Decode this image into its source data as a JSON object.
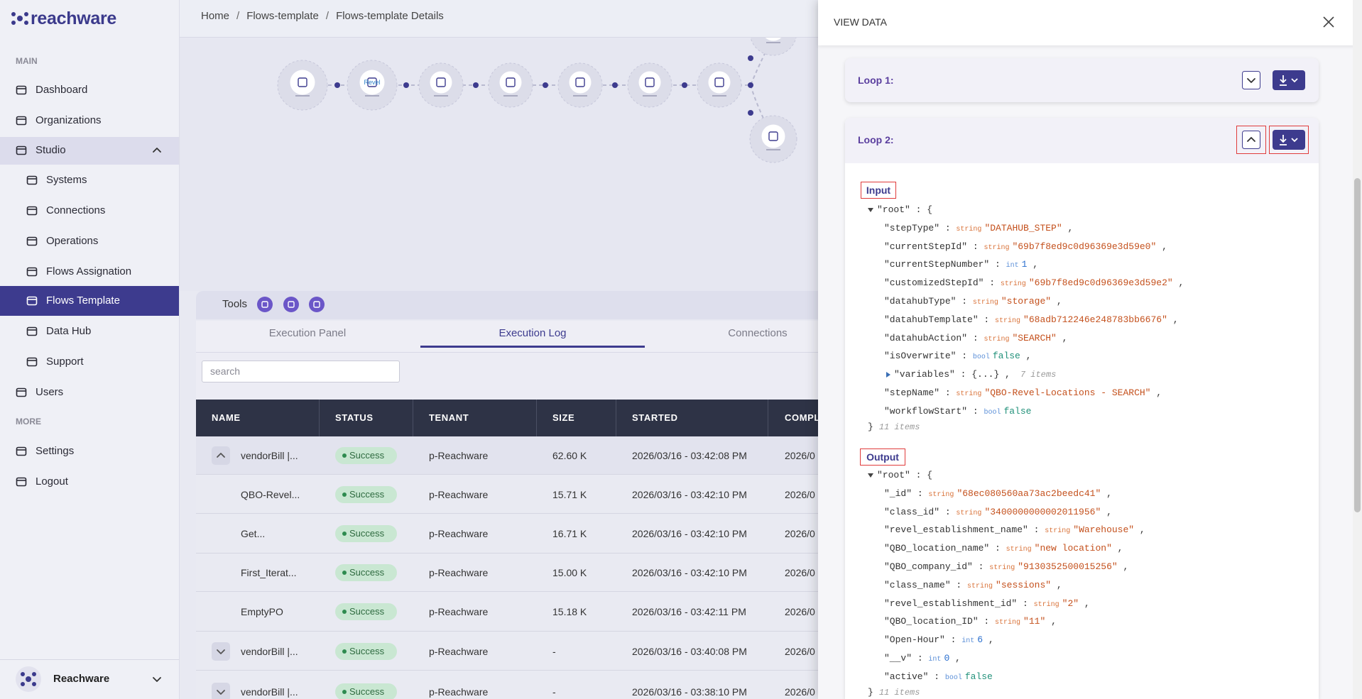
{
  "sidebar": {
    "logo": "reachware",
    "main_heading": "MAIN",
    "items": [
      {
        "label": "Dashboard"
      },
      {
        "label": "Organizations"
      },
      {
        "label": "Studio",
        "expanded": true
      },
      {
        "label": "Systems",
        "sub": true
      },
      {
        "label": "Connections",
        "sub": true
      },
      {
        "label": "Operations",
        "sub": true
      },
      {
        "label": "Flows Assignation",
        "sub": true
      },
      {
        "label": "Flows Template",
        "sub": true,
        "active": true
      },
      {
        "label": "Data Hub",
        "sub": true
      },
      {
        "label": "Support",
        "sub": true
      },
      {
        "label": "Users"
      }
    ],
    "more_heading": "MORE",
    "more_items": [
      {
        "label": "Settings"
      },
      {
        "label": "Logout"
      }
    ],
    "footer": "Reachware"
  },
  "breadcrumb": [
    "Home",
    "Flows-template",
    "Flows-template Details"
  ],
  "flow": {
    "logo_text": "Revel"
  },
  "tools": {
    "label": "Tools"
  },
  "tabs": {
    "items": [
      "Execution Panel",
      "Execution Log",
      "Connections"
    ],
    "active": 1
  },
  "search": {
    "placeholder": "search"
  },
  "table": {
    "columns": [
      "NAME",
      "STATUS",
      "TENANT",
      "SIZE",
      "STARTED",
      "COMPL"
    ],
    "rows": [
      {
        "toggle": "collapse",
        "cells": [
          "vendorBill |...",
          "Success",
          "p-Reachware",
          "62.60 K",
          "2026/03/16 - 03:42:08 PM",
          "2026/0"
        ]
      },
      {
        "cells": [
          "QBO-Revel...",
          "Success",
          "p-Reachware",
          "15.71 K",
          "2026/03/16 - 03:42:10 PM",
          "2026/0"
        ]
      },
      {
        "cells": [
          "Get...",
          "Success",
          "p-Reachware",
          "16.71 K",
          "2026/03/16 - 03:42:10 PM",
          "2026/0"
        ]
      },
      {
        "cells": [
          "First_Iterat...",
          "Success",
          "p-Reachware",
          "15.00 K",
          "2026/03/16 - 03:42:10 PM",
          "2026/0"
        ]
      },
      {
        "cells": [
          "EmptyPO",
          "Success",
          "p-Reachware",
          "15.18 K",
          "2026/03/16 - 03:42:11 PM",
          "2026/0"
        ]
      },
      {
        "toggle": "expand",
        "cells": [
          "vendorBill |...",
          "Success",
          "p-Reachware",
          "-",
          "2026/03/16 - 03:40:08 PM",
          "2026/0"
        ]
      },
      {
        "toggle": "expand",
        "cells": [
          "vendorBill |...",
          "Success",
          "p-Reachware",
          "-",
          "2026/03/16 - 03:38:10 PM",
          "2026/0"
        ]
      }
    ]
  },
  "panel": {
    "title": "VIEW DATA",
    "loops": [
      {
        "label": "Loop 1:",
        "expanded": false
      },
      {
        "label": "Loop 2:",
        "expanded": true
      }
    ],
    "input": {
      "label": "Input",
      "root": "\"root\"",
      "count": "11 items",
      "lines": [
        {
          "key": "\"stepType\"",
          "type": "string",
          "value": "\"DATAHUB_STEP\""
        },
        {
          "key": "\"currentStepId\"",
          "type": "string",
          "value": "\"69b7f8ed9c0d96369e3d59e0\""
        },
        {
          "key": "\"currentStepNumber\"",
          "type": "int",
          "value": "1"
        },
        {
          "key": "\"customizedStepId\"",
          "type": "string",
          "value": "\"69b7f8ed9c0d96369e3d59e2\""
        },
        {
          "key": "\"datahubType\"",
          "type": "string",
          "value": "\"storage\""
        },
        {
          "key": "\"datahubTemplate\"",
          "type": "string",
          "value": "\"68adb712246e248783bb6676\""
        },
        {
          "key": "\"datahubAction\"",
          "type": "string",
          "value": "\"SEARCH\""
        },
        {
          "key": "\"isOverwrite\"",
          "type": "bool",
          "value": "false"
        },
        {
          "key": "\"variables\"",
          "value": "{...}",
          "note": "7 items",
          "collapsed": true
        },
        {
          "key": "\"stepName\"",
          "type": "string",
          "value": "\"QBO-Revel-Locations - SEARCH\""
        },
        {
          "key": "\"workflowStart\"",
          "type": "bool",
          "value": "false"
        }
      ]
    },
    "output": {
      "label": "Output",
      "root": "\"root\"",
      "count": "11 items",
      "lines": [
        {
          "key": "\"_id\"",
          "type": "string",
          "value": "\"68ec080560aa73ac2beedc41\""
        },
        {
          "key": "\"class_id\"",
          "type": "string",
          "value": "\"3400000000002011956\""
        },
        {
          "key": "\"revel_establishment_name\"",
          "type": "string",
          "value": "\"Warehouse\""
        },
        {
          "key": "\"QBO_location_name\"",
          "type": "string",
          "value": "\"new location\""
        },
        {
          "key": "\"QBO_company_id\"",
          "type": "string",
          "value": "\"9130352500015256\""
        },
        {
          "key": "\"class_name\"",
          "type": "string",
          "value": "\"sessions\""
        },
        {
          "key": "\"revel_establishment_id\"",
          "type": "string",
          "value": "\"2\""
        },
        {
          "key": "\"QBO_location_ID\"",
          "type": "string",
          "value": "\"11\""
        },
        {
          "key": "\"Open-Hour\"",
          "type": "int",
          "value": "6"
        },
        {
          "key": "\"__v\"",
          "type": "int",
          "value": "0"
        },
        {
          "key": "\"active\"",
          "type": "bool",
          "value": "false"
        }
      ]
    }
  }
}
